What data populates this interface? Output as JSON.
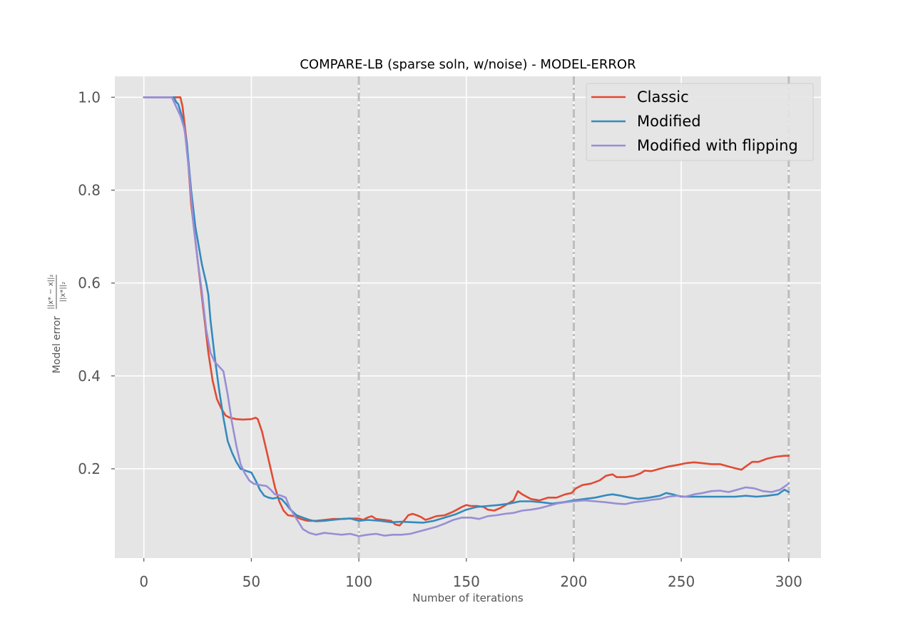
{
  "chart_data": {
    "type": "line",
    "title": "COMPARE-LB (sparse soln, w/noise) - MODEL-ERROR",
    "xlabel": "Number of iterations",
    "ylabel_prefix": "Model error",
    "ylabel_fraction": {
      "numerator": "||x* − x||₂",
      "denominator": "||x*||₂"
    },
    "xlim": [
      -13.5,
      315
    ],
    "ylim": [
      0.0078,
      1.045
    ],
    "xticks": [
      0,
      50,
      100,
      150,
      200,
      250,
      300
    ],
    "xtick_labels": [
      "0",
      "50",
      "100",
      "150",
      "200",
      "250",
      "300"
    ],
    "yticks": [
      0.2,
      0.4,
      0.6,
      0.8,
      1.0
    ],
    "ytick_labels": [
      "0.2",
      "0.4",
      "0.6",
      "0.8",
      "1.0"
    ],
    "grid": true,
    "legend_position": "top-right",
    "reference_lines": [
      100,
      200,
      300
    ],
    "series": [
      {
        "name": "Classic",
        "color": "#e24a33",
        "points": [
          [
            0,
            1.0
          ],
          [
            14,
            1.0
          ],
          [
            16,
            1.0
          ],
          [
            17,
            1.0
          ],
          [
            18,
            0.98
          ],
          [
            20,
            0.9
          ],
          [
            22,
            0.77
          ],
          [
            25,
            0.65
          ],
          [
            28,
            0.53
          ],
          [
            30,
            0.45
          ],
          [
            32,
            0.39
          ],
          [
            34,
            0.35
          ],
          [
            36,
            0.33
          ],
          [
            38,
            0.315
          ],
          [
            40,
            0.31
          ],
          [
            43,
            0.307
          ],
          [
            46,
            0.306
          ],
          [
            50,
            0.307
          ],
          [
            52,
            0.31
          ],
          [
            53,
            0.307
          ],
          [
            55,
            0.28
          ],
          [
            57,
            0.24
          ],
          [
            59,
            0.2
          ],
          [
            61,
            0.16
          ],
          [
            63,
            0.13
          ],
          [
            65,
            0.11
          ],
          [
            67,
            0.1
          ],
          [
            70,
            0.098
          ],
          [
            73,
            0.092
          ],
          [
            76,
            0.088
          ],
          [
            80,
            0.088
          ],
          [
            84,
            0.09
          ],
          [
            88,
            0.092
          ],
          [
            92,
            0.092
          ],
          [
            96,
            0.093
          ],
          [
            100,
            0.093
          ],
          [
            102,
            0.09
          ],
          [
            104,
            0.095
          ],
          [
            106,
            0.098
          ],
          [
            108,
            0.092
          ],
          [
            112,
            0.09
          ],
          [
            115,
            0.088
          ],
          [
            117,
            0.08
          ],
          [
            119,
            0.078
          ],
          [
            121,
            0.088
          ],
          [
            123,
            0.1
          ],
          [
            125,
            0.103
          ],
          [
            127,
            0.1
          ],
          [
            129,
            0.096
          ],
          [
            131,
            0.09
          ],
          [
            133,
            0.093
          ],
          [
            136,
            0.098
          ],
          [
            140,
            0.1
          ],
          [
            144,
            0.108
          ],
          [
            148,
            0.118
          ],
          [
            150,
            0.122
          ],
          [
            152,
            0.12
          ],
          [
            155,
            0.12
          ],
          [
            158,
            0.118
          ],
          [
            160,
            0.112
          ],
          [
            163,
            0.11
          ],
          [
            166,
            0.116
          ],
          [
            169,
            0.124
          ],
          [
            172,
            0.132
          ],
          [
            174,
            0.152
          ],
          [
            176,
            0.145
          ],
          [
            180,
            0.135
          ],
          [
            184,
            0.132
          ],
          [
            188,
            0.138
          ],
          [
            192,
            0.138
          ],
          [
            196,
            0.145
          ],
          [
            199,
            0.148
          ],
          [
            201,
            0.158
          ],
          [
            204,
            0.165
          ],
          [
            208,
            0.168
          ],
          [
            212,
            0.175
          ],
          [
            215,
            0.185
          ],
          [
            218,
            0.188
          ],
          [
            220,
            0.182
          ],
          [
            224,
            0.182
          ],
          [
            228,
            0.185
          ],
          [
            231,
            0.19
          ],
          [
            233,
            0.196
          ],
          [
            236,
            0.195
          ],
          [
            240,
            0.2
          ],
          [
            244,
            0.205
          ],
          [
            248,
            0.208
          ],
          [
            252,
            0.212
          ],
          [
            256,
            0.214
          ],
          [
            260,
            0.212
          ],
          [
            264,
            0.21
          ],
          [
            268,
            0.21
          ],
          [
            272,
            0.205
          ],
          [
            276,
            0.2
          ],
          [
            278,
            0.198
          ],
          [
            280,
            0.205
          ],
          [
            283,
            0.215
          ],
          [
            286,
            0.215
          ],
          [
            290,
            0.222
          ],
          [
            294,
            0.226
          ],
          [
            298,
            0.228
          ],
          [
            300,
            0.228
          ]
        ]
      },
      {
        "name": "Modified",
        "color": "#348abd",
        "points": [
          [
            0,
            1.0
          ],
          [
            14,
            1.0
          ],
          [
            15,
            0.99
          ],
          [
            16,
            0.985
          ],
          [
            18,
            0.955
          ],
          [
            20,
            0.9
          ],
          [
            22,
            0.8
          ],
          [
            24,
            0.72
          ],
          [
            27,
            0.64
          ],
          [
            29,
            0.6
          ],
          [
            30,
            0.575
          ],
          [
            31,
            0.52
          ],
          [
            33,
            0.44
          ],
          [
            35,
            0.37
          ],
          [
            37,
            0.31
          ],
          [
            39,
            0.26
          ],
          [
            41,
            0.235
          ],
          [
            43,
            0.215
          ],
          [
            45,
            0.2
          ],
          [
            48,
            0.195
          ],
          [
            50,
            0.192
          ],
          [
            52,
            0.175
          ],
          [
            54,
            0.155
          ],
          [
            56,
            0.142
          ],
          [
            58,
            0.138
          ],
          [
            60,
            0.136
          ],
          [
            62,
            0.138
          ],
          [
            64,
            0.135
          ],
          [
            66,
            0.125
          ],
          [
            68,
            0.113
          ],
          [
            71,
            0.1
          ],
          [
            74,
            0.095
          ],
          [
            77,
            0.09
          ],
          [
            80,
            0.087
          ],
          [
            84,
            0.088
          ],
          [
            88,
            0.09
          ],
          [
            92,
            0.092
          ],
          [
            96,
            0.093
          ],
          [
            100,
            0.088
          ],
          [
            104,
            0.09
          ],
          [
            110,
            0.088
          ],
          [
            115,
            0.085
          ],
          [
            120,
            0.086
          ],
          [
            125,
            0.085
          ],
          [
            130,
            0.084
          ],
          [
            135,
            0.088
          ],
          [
            140,
            0.095
          ],
          [
            145,
            0.102
          ],
          [
            150,
            0.112
          ],
          [
            155,
            0.118
          ],
          [
            160,
            0.12
          ],
          [
            165,
            0.122
          ],
          [
            170,
            0.125
          ],
          [
            175,
            0.13
          ],
          [
            180,
            0.13
          ],
          [
            185,
            0.128
          ],
          [
            190,
            0.125
          ],
          [
            195,
            0.128
          ],
          [
            200,
            0.132
          ],
          [
            205,
            0.135
          ],
          [
            210,
            0.138
          ],
          [
            215,
            0.143
          ],
          [
            218,
            0.145
          ],
          [
            222,
            0.142
          ],
          [
            226,
            0.138
          ],
          [
            230,
            0.135
          ],
          [
            235,
            0.138
          ],
          [
            240,
            0.142
          ],
          [
            243,
            0.148
          ],
          [
            246,
            0.145
          ],
          [
            250,
            0.14
          ],
          [
            255,
            0.14
          ],
          [
            260,
            0.14
          ],
          [
            265,
            0.14
          ],
          [
            270,
            0.14
          ],
          [
            275,
            0.14
          ],
          [
            280,
            0.142
          ],
          [
            285,
            0.14
          ],
          [
            290,
            0.142
          ],
          [
            295,
            0.145
          ],
          [
            298,
            0.155
          ],
          [
            300,
            0.15
          ]
        ]
      },
      {
        "name": "Modified with flipping",
        "color": "#988ed5",
        "points": [
          [
            0,
            1.0
          ],
          [
            13,
            1.0
          ],
          [
            15,
            0.98
          ],
          [
            17,
            0.96
          ],
          [
            19,
            0.93
          ],
          [
            21,
            0.84
          ],
          [
            23,
            0.73
          ],
          [
            25,
            0.65
          ],
          [
            27,
            0.58
          ],
          [
            29,
            0.5
          ],
          [
            31,
            0.45
          ],
          [
            33,
            0.43
          ],
          [
            35,
            0.42
          ],
          [
            37,
            0.41
          ],
          [
            39,
            0.36
          ],
          [
            41,
            0.3
          ],
          [
            43,
            0.25
          ],
          [
            45,
            0.21
          ],
          [
            47,
            0.19
          ],
          [
            49,
            0.175
          ],
          [
            51,
            0.168
          ],
          [
            54,
            0.165
          ],
          [
            57,
            0.163
          ],
          [
            59,
            0.155
          ],
          [
            61,
            0.145
          ],
          [
            64,
            0.142
          ],
          [
            66,
            0.138
          ],
          [
            68,
            0.115
          ],
          [
            70,
            0.1
          ],
          [
            72,
            0.085
          ],
          [
            74,
            0.07
          ],
          [
            77,
            0.062
          ],
          [
            80,
            0.058
          ],
          [
            84,
            0.062
          ],
          [
            88,
            0.06
          ],
          [
            92,
            0.058
          ],
          [
            96,
            0.06
          ],
          [
            100,
            0.055
          ],
          [
            104,
            0.058
          ],
          [
            108,
            0.06
          ],
          [
            112,
            0.056
          ],
          [
            116,
            0.058
          ],
          [
            120,
            0.058
          ],
          [
            124,
            0.06
          ],
          [
            128,
            0.065
          ],
          [
            132,
            0.07
          ],
          [
            136,
            0.075
          ],
          [
            140,
            0.082
          ],
          [
            144,
            0.09
          ],
          [
            148,
            0.095
          ],
          [
            152,
            0.095
          ],
          [
            156,
            0.092
          ],
          [
            160,
            0.098
          ],
          [
            164,
            0.1
          ],
          [
            168,
            0.103
          ],
          [
            172,
            0.105
          ],
          [
            176,
            0.11
          ],
          [
            180,
            0.112
          ],
          [
            184,
            0.115
          ],
          [
            188,
            0.12
          ],
          [
            192,
            0.125
          ],
          [
            196,
            0.128
          ],
          [
            200,
            0.13
          ],
          [
            205,
            0.132
          ],
          [
            210,
            0.13
          ],
          [
            215,
            0.128
          ],
          [
            220,
            0.125
          ],
          [
            224,
            0.124
          ],
          [
            228,
            0.128
          ],
          [
            232,
            0.13
          ],
          [
            236,
            0.133
          ],
          [
            240,
            0.135
          ],
          [
            244,
            0.14
          ],
          [
            248,
            0.142
          ],
          [
            252,
            0.14
          ],
          [
            256,
            0.145
          ],
          [
            260,
            0.148
          ],
          [
            264,
            0.152
          ],
          [
            268,
            0.153
          ],
          [
            272,
            0.15
          ],
          [
            276,
            0.155
          ],
          [
            280,
            0.16
          ],
          [
            284,
            0.158
          ],
          [
            288,
            0.152
          ],
          [
            292,
            0.15
          ],
          [
            296,
            0.155
          ],
          [
            300,
            0.168
          ]
        ]
      }
    ]
  }
}
